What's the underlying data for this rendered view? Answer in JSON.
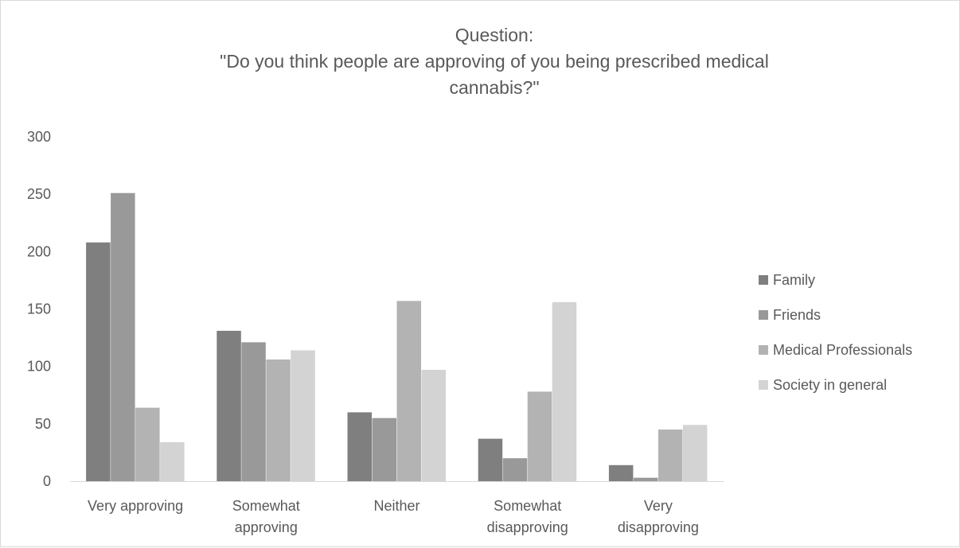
{
  "chart_data": {
    "type": "bar",
    "title_lines": [
      "Question:",
      "\"Do you think people are approving of you being prescribed medical",
      "cannabis?\""
    ],
    "categories": [
      [
        "Very approving"
      ],
      [
        "Somewhat",
        "approving"
      ],
      [
        "Neither"
      ],
      [
        "Somewhat",
        "disapproving"
      ],
      [
        "Very",
        "disapproving"
      ]
    ],
    "series": [
      {
        "name": "Family",
        "color": "#7f7f7f",
        "values": [
          208,
          131,
          60,
          37,
          14
        ]
      },
      {
        "name": "Friends",
        "color": "#999999",
        "values": [
          251,
          121,
          55,
          20,
          3
        ]
      },
      {
        "name": "Medical Professionals",
        "color": "#b3b3b3",
        "values": [
          64,
          106,
          157,
          78,
          45
        ]
      },
      {
        "name": "Society in general",
        "color": "#d3d3d3",
        "values": [
          34,
          114,
          97,
          156,
          49
        ]
      }
    ],
    "ylim": [
      0,
      300
    ],
    "yticks": [
      0,
      50,
      100,
      150,
      200,
      250,
      300
    ],
    "grid": false,
    "legend_position": "right"
  }
}
